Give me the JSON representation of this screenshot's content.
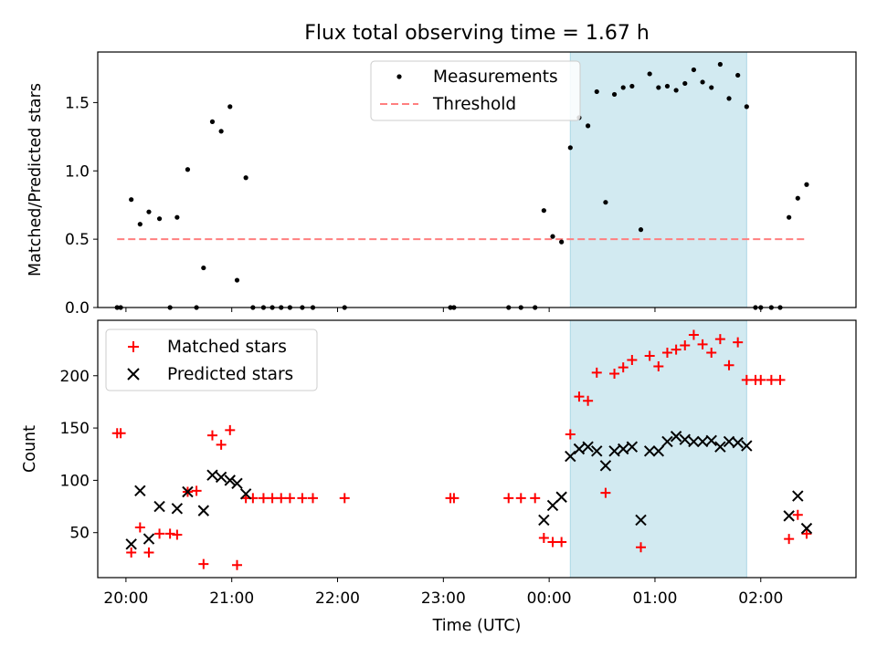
{
  "figure": {
    "title": "Flux total observing time = 1.67 h",
    "shaded_color": "#add8e6"
  },
  "chart_data": [
    {
      "type": "scatter",
      "ylabel": "Matched/Predicted stars",
      "ylim": [
        0,
        1.87
      ],
      "xlim": [
        "19:44",
        "02:54"
      ],
      "yticks": [
        0.0,
        0.5,
        1.0,
        1.5
      ],
      "ytick_labels": [
        "0.0",
        "0.5",
        "1.0",
        "1.5"
      ],
      "legend_position": "upper-center",
      "highlight_span": [
        "00:12",
        "01:52"
      ],
      "series": [
        {
          "name": "Measurements",
          "marker": "dot",
          "color": "#000000",
          "points": [
            [
              "19:55",
              0
            ],
            [
              "19:57",
              0
            ],
            [
              "20:03",
              0.79
            ],
            [
              "20:08",
              0.61
            ],
            [
              "20:13",
              0.7
            ],
            [
              "20:19",
              0.65
            ],
            [
              "20:25",
              0
            ],
            [
              "20:29",
              0.66
            ],
            [
              "20:35",
              1.01
            ],
            [
              "20:40",
              0
            ],
            [
              "20:44",
              0.29
            ],
            [
              "20:49",
              1.36
            ],
            [
              "20:54",
              1.29
            ],
            [
              "20:59",
              1.47
            ],
            [
              "21:03",
              0.2
            ],
            [
              "21:08",
              0.95
            ],
            [
              "21:12",
              0
            ],
            [
              "21:18",
              0
            ],
            [
              "21:23",
              0
            ],
            [
              "21:28",
              0
            ],
            [
              "21:33",
              0
            ],
            [
              "21:40",
              0
            ],
            [
              "21:46",
              0
            ],
            [
              "22:04",
              0
            ],
            [
              "23:04",
              0
            ],
            [
              "23:06",
              0
            ],
            [
              "23:37",
              0
            ],
            [
              "23:44",
              0
            ],
            [
              "23:52",
              0
            ],
            [
              "23:57",
              0.71
            ],
            [
              "00:02",
              0.52
            ],
            [
              "00:07",
              0.48
            ],
            [
              "00:12",
              1.17
            ],
            [
              "00:17",
              1.39
            ],
            [
              "00:22",
              1.33
            ],
            [
              "00:27",
              1.58
            ],
            [
              "00:32",
              0.77
            ],
            [
              "00:37",
              1.56
            ],
            [
              "00:42",
              1.61
            ],
            [
              "00:47",
              1.62
            ],
            [
              "00:52",
              0.57
            ],
            [
              "00:57",
              1.71
            ],
            [
              "01:02",
              1.61
            ],
            [
              "01:07",
              1.62
            ],
            [
              "01:12",
              1.59
            ],
            [
              "01:17",
              1.64
            ],
            [
              "01:22",
              1.74
            ],
            [
              "01:27",
              1.65
            ],
            [
              "01:32",
              1.61
            ],
            [
              "01:37",
              1.78
            ],
            [
              "01:42",
              1.53
            ],
            [
              "01:47",
              1.7
            ],
            [
              "01:52",
              1.47
            ],
            [
              "01:57",
              0
            ],
            [
              "02:00",
              0
            ],
            [
              "02:06",
              0
            ],
            [
              "02:11",
              0
            ],
            [
              "02:16",
              0.66
            ],
            [
              "02:21",
              0.8
            ],
            [
              "02:26",
              0.9
            ]
          ]
        },
        {
          "name": "Threshold",
          "style": "dashed-line",
          "color": "#ff7f7f",
          "points": [
            [
              "19:55",
              0.5
            ],
            [
              "02:26",
              0.5
            ]
          ]
        }
      ]
    },
    {
      "type": "scatter",
      "xlabel": "Time (UTC)",
      "ylabel": "Count",
      "ylim": [
        7,
        253
      ],
      "xlim": [
        "19:44",
        "02:54"
      ],
      "yticks": [
        50,
        100,
        150,
        200
      ],
      "ytick_labels": [
        "50",
        "100",
        "150",
        "200"
      ],
      "xticks": [
        "20:00",
        "21:00",
        "22:00",
        "23:00",
        "00:00",
        "01:00",
        "02:00"
      ],
      "legend_position": "upper-left",
      "highlight_span": [
        "00:12",
        "01:52"
      ],
      "series": [
        {
          "name": "Matched stars",
          "marker": "plus",
          "color": "#ff0000",
          "points": [
            [
              "19:55",
              145
            ],
            [
              "19:57",
              145
            ],
            [
              "20:03",
              31
            ],
            [
              "20:08",
              55
            ],
            [
              "20:13",
              31
            ],
            [
              "20:19",
              49
            ],
            [
              "20:25",
              49
            ],
            [
              "20:29",
              48
            ],
            [
              "20:35",
              89
            ],
            [
              "20:40",
              90
            ],
            [
              "20:44",
              20
            ],
            [
              "20:49",
              143
            ],
            [
              "20:54",
              134
            ],
            [
              "20:59",
              148
            ],
            [
              "21:03",
              19
            ],
            [
              "21:08",
              83
            ],
            [
              "21:12",
              83
            ],
            [
              "21:18",
              83
            ],
            [
              "21:23",
              83
            ],
            [
              "21:28",
              83
            ],
            [
              "21:33",
              83
            ],
            [
              "21:40",
              83
            ],
            [
              "21:46",
              83
            ],
            [
              "22:04",
              83
            ],
            [
              "23:04",
              83
            ],
            [
              "23:06",
              83
            ],
            [
              "23:37",
              83
            ],
            [
              "23:44",
              83
            ],
            [
              "23:52",
              83
            ],
            [
              "23:57",
              45
            ],
            [
              "00:02",
              41
            ],
            [
              "00:07",
              41
            ],
            [
              "00:12",
              144
            ],
            [
              "00:17",
              180
            ],
            [
              "00:22",
              176
            ],
            [
              "00:27",
              203
            ],
            [
              "00:32",
              88
            ],
            [
              "00:37",
              202
            ],
            [
              "00:42",
              208
            ],
            [
              "00:47",
              215
            ],
            [
              "00:52",
              36
            ],
            [
              "00:57",
              219
            ],
            [
              "01:02",
              209
            ],
            [
              "01:07",
              222
            ],
            [
              "01:12",
              225
            ],
            [
              "01:17",
              229
            ],
            [
              "01:22",
              239
            ],
            [
              "01:27",
              230
            ],
            [
              "01:32",
              222
            ],
            [
              "01:37",
              235
            ],
            [
              "01:42",
              210
            ],
            [
              "01:47",
              232
            ],
            [
              "01:52",
              196
            ],
            [
              "01:57",
              196
            ],
            [
              "02:00",
              196
            ],
            [
              "02:06",
              196
            ],
            [
              "02:11",
              196
            ],
            [
              "02:16",
              44
            ],
            [
              "02:21",
              67
            ],
            [
              "02:26",
              49
            ]
          ]
        },
        {
          "name": "Predicted stars",
          "marker": "x",
          "color": "#000000",
          "points": [
            [
              "20:03",
              39
            ],
            [
              "20:08",
              90
            ],
            [
              "20:13",
              44
            ],
            [
              "20:19",
              75
            ],
            [
              "20:29",
              73
            ],
            [
              "20:35",
              89
            ],
            [
              "20:44",
              71
            ],
            [
              "20:49",
              105
            ],
            [
              "20:54",
              103
            ],
            [
              "20:59",
              100
            ],
            [
              "21:03",
              97
            ],
            [
              "21:08",
              87
            ],
            [
              "23:57",
              62
            ],
            [
              "00:02",
              76
            ],
            [
              "00:07",
              84
            ],
            [
              "00:12",
              123
            ],
            [
              "00:17",
              130
            ],
            [
              "00:22",
              132
            ],
            [
              "00:27",
              128
            ],
            [
              "00:32",
              114
            ],
            [
              "00:37",
              128
            ],
            [
              "00:42",
              130
            ],
            [
              "00:47",
              132
            ],
            [
              "00:52",
              62
            ],
            [
              "00:57",
              128
            ],
            [
              "01:02",
              128
            ],
            [
              "01:07",
              137
            ],
            [
              "01:12",
              142
            ],
            [
              "01:17",
              139
            ],
            [
              "01:22",
              137
            ],
            [
              "01:27",
              137
            ],
            [
              "01:32",
              138
            ],
            [
              "01:37",
              132
            ],
            [
              "01:42",
              137
            ],
            [
              "01:47",
              136
            ],
            [
              "01:52",
              133
            ],
            [
              "02:16",
              66
            ],
            [
              "02:21",
              85
            ],
            [
              "02:26",
              54
            ]
          ]
        }
      ]
    }
  ]
}
